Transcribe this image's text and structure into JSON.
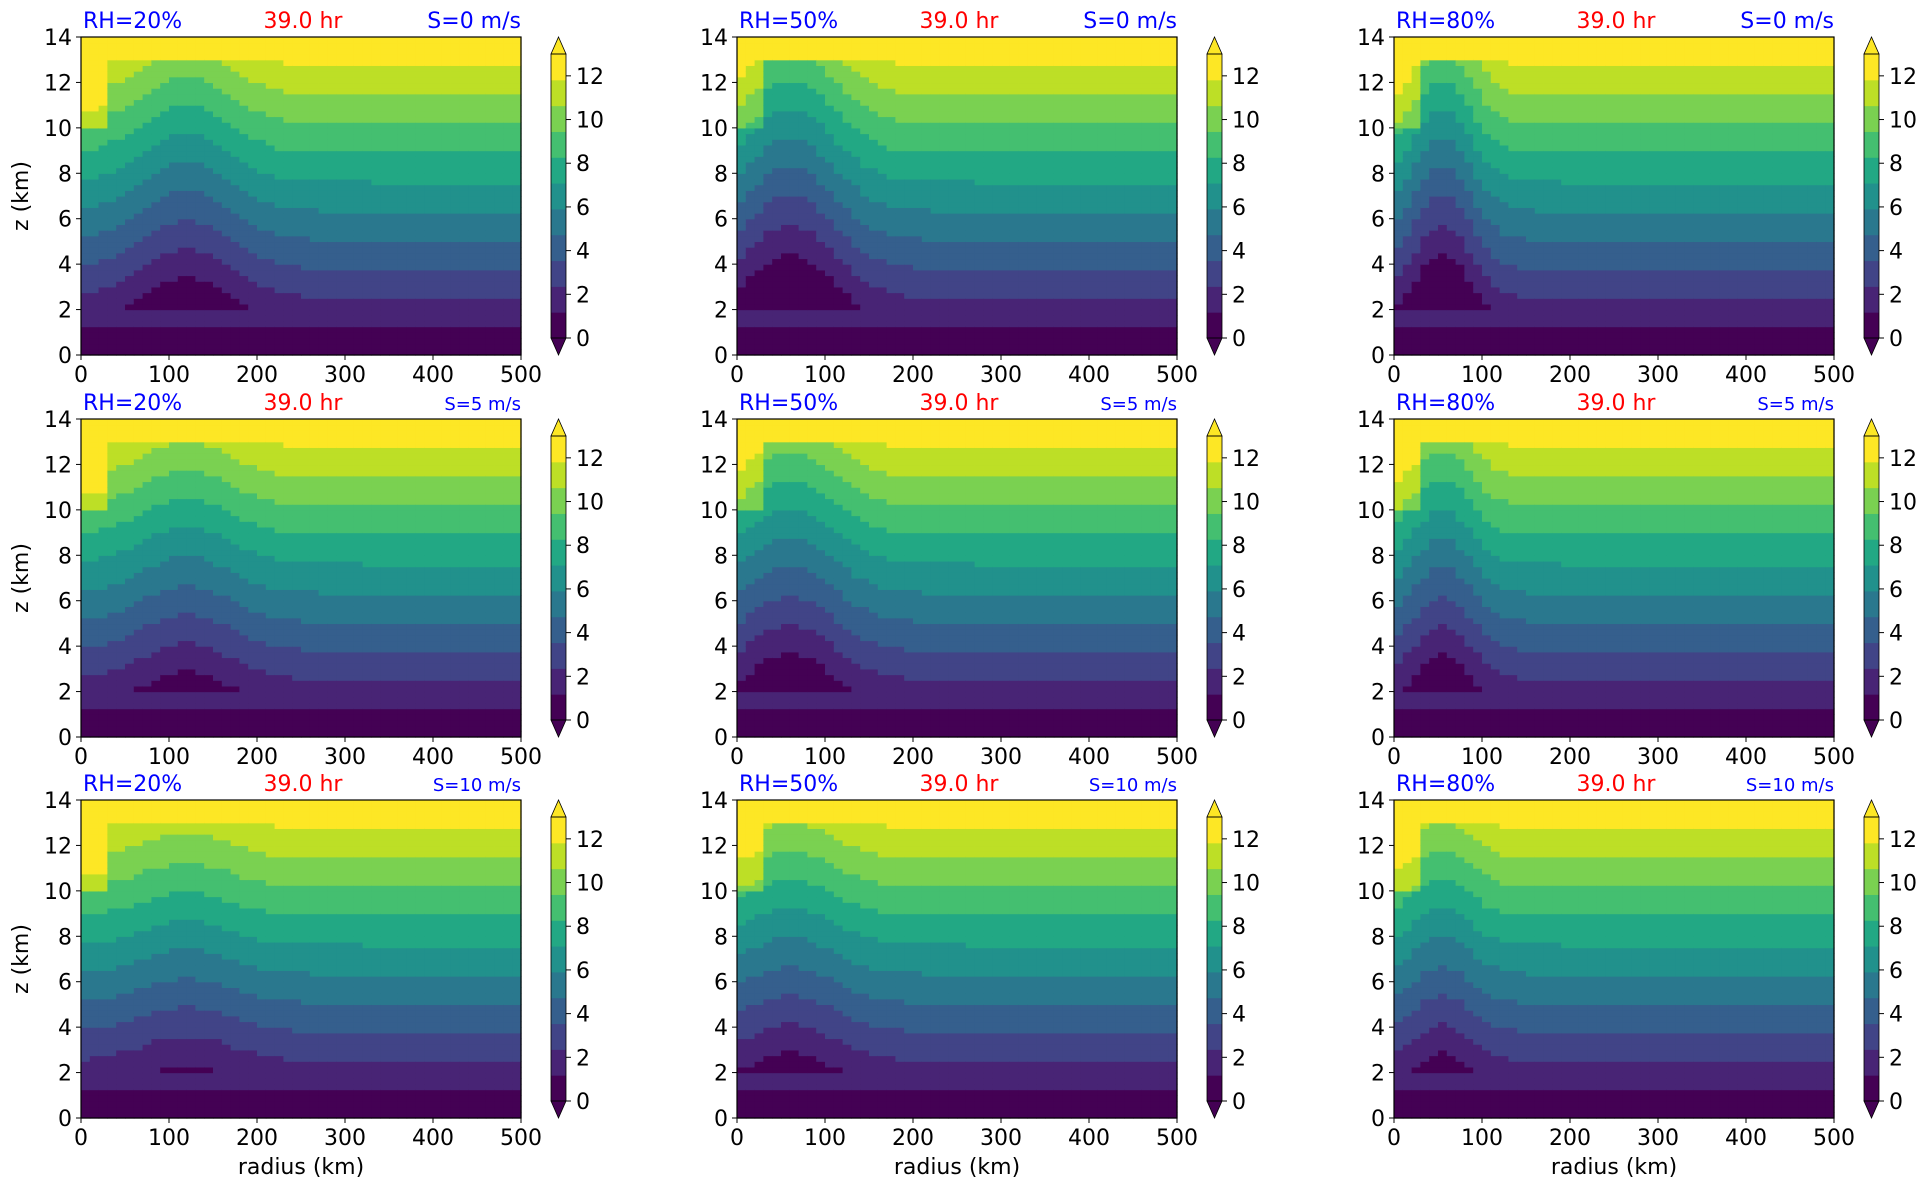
{
  "colormap": [
    "#440154",
    "#482475",
    "#414487",
    "#355f8d",
    "#2a788e",
    "#21918c",
    "#22a884",
    "#44bf70",
    "#7ad151",
    "#bddf26",
    "#fde725"
  ],
  "colorbar_ticks": [
    "0",
    "2",
    "4",
    "6",
    "8",
    "10",
    "12"
  ],
  "chart_data": [
    {
      "type": "heatmap",
      "title_left": "RH=20%",
      "title_center": "39.0 hr",
      "title_right": "S=0 m/s",
      "xlabel": "",
      "ylabel": "z (km)",
      "xlim": [
        0,
        500
      ],
      "ylim": [
        0,
        14
      ],
      "xticks": [
        "0",
        "100",
        "200",
        "300",
        "400",
        "500"
      ],
      "yticks": [
        "0",
        "2",
        "4",
        "6",
        "8",
        "10",
        "12",
        "14"
      ],
      "clim": [
        0,
        13
      ]
    },
    {
      "type": "heatmap",
      "title_left": "RH=50%",
      "title_center": "39.0 hr",
      "title_right": "S=0 m/s",
      "xlabel": "",
      "ylabel": "",
      "xlim": [
        0,
        500
      ],
      "ylim": [
        0,
        14
      ],
      "xticks": [
        "0",
        "100",
        "200",
        "300",
        "400",
        "500"
      ],
      "yticks": [
        "0",
        "2",
        "4",
        "6",
        "8",
        "10",
        "12",
        "14"
      ],
      "clim": [
        0,
        13
      ]
    },
    {
      "type": "heatmap",
      "title_left": "RH=80%",
      "title_center": "39.0 hr",
      "title_right": "S=0 m/s",
      "xlabel": "",
      "ylabel": "",
      "xlim": [
        0,
        500
      ],
      "ylim": [
        0,
        14
      ],
      "xticks": [
        "0",
        "100",
        "200",
        "300",
        "400",
        "500"
      ],
      "yticks": [
        "0",
        "2",
        "4",
        "6",
        "8",
        "10",
        "12",
        "14"
      ],
      "clim": [
        0,
        13
      ]
    },
    {
      "type": "heatmap",
      "title_left": "RH=20%",
      "title_center": "39.0 hr",
      "title_right": "S=5 m/s",
      "xlabel": "",
      "ylabel": "z (km)",
      "xlim": [
        0,
        500
      ],
      "ylim": [
        0,
        14
      ],
      "xticks": [
        "0",
        "100",
        "200",
        "300",
        "400",
        "500"
      ],
      "yticks": [
        "0",
        "2",
        "4",
        "6",
        "8",
        "10",
        "12",
        "14"
      ],
      "clim": [
        0,
        13
      ]
    },
    {
      "type": "heatmap",
      "title_left": "RH=50%",
      "title_center": "39.0 hr",
      "title_right": "S=5 m/s",
      "xlabel": "",
      "ylabel": "",
      "xlim": [
        0,
        500
      ],
      "ylim": [
        0,
        14
      ],
      "xticks": [
        "0",
        "100",
        "200",
        "300",
        "400",
        "500"
      ],
      "yticks": [
        "0",
        "2",
        "4",
        "6",
        "8",
        "10",
        "12",
        "14"
      ],
      "clim": [
        0,
        13
      ]
    },
    {
      "type": "heatmap",
      "title_left": "RH=80%",
      "title_center": "39.0 hr",
      "title_right": "S=5 m/s",
      "xlabel": "",
      "ylabel": "",
      "xlim": [
        0,
        500
      ],
      "ylim": [
        0,
        14
      ],
      "xticks": [
        "0",
        "100",
        "200",
        "300",
        "400",
        "500"
      ],
      "yticks": [
        "0",
        "2",
        "4",
        "6",
        "8",
        "10",
        "12",
        "14"
      ],
      "clim": [
        0,
        13
      ]
    },
    {
      "type": "heatmap",
      "title_left": "RH=20%",
      "title_center": "39.0 hr",
      "title_right": "S=10 m/s",
      "xlabel": "radius (km)",
      "ylabel": "z (km)",
      "xlim": [
        0,
        500
      ],
      "ylim": [
        0,
        14
      ],
      "xticks": [
        "0",
        "100",
        "200",
        "300",
        "400",
        "500"
      ],
      "yticks": [
        "0",
        "2",
        "4",
        "6",
        "8",
        "10",
        "12",
        "14"
      ],
      "clim": [
        0,
        13
      ]
    },
    {
      "type": "heatmap",
      "title_left": "RH=50%",
      "title_center": "39.0 hr",
      "title_right": "S=10 m/s",
      "xlabel": "radius (km)",
      "ylabel": "",
      "xlim": [
        0,
        500
      ],
      "ylim": [
        0,
        14
      ],
      "xticks": [
        "0",
        "100",
        "200",
        "300",
        "400",
        "500"
      ],
      "yticks": [
        "0",
        "2",
        "4",
        "6",
        "8",
        "10",
        "12",
        "14"
      ],
      "clim": [
        0,
        13
      ]
    },
    {
      "type": "heatmap",
      "title_left": "RH=80%",
      "title_center": "39.0 hr",
      "title_right": "S=10 m/s",
      "xlabel": "radius (km)",
      "ylabel": "",
      "xlim": [
        0,
        500
      ],
      "ylim": [
        0,
        14
      ],
      "xticks": [
        "0",
        "100",
        "200",
        "300",
        "400",
        "500"
      ],
      "yticks": [
        "0",
        "2",
        "4",
        "6",
        "8",
        "10",
        "12",
        "14"
      ],
      "clim": [
        0,
        13
      ]
    }
  ]
}
